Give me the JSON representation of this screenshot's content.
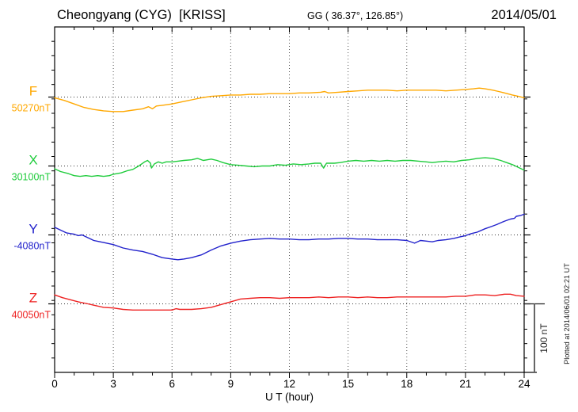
{
  "header": {
    "title": "Cheongyang (CYG)  [KRISS]",
    "coords": "GG ( 36.37°, 126.85°)",
    "date": "2014/05/01"
  },
  "side_note": "Plotted at 2014/06/01 02:21 UT",
  "chart_data": {
    "type": "line",
    "title": "Cheongyang (CYG) [KRISS] geomagnetic field components, 2014/05/01",
    "xlabel": "U T (hour)",
    "x_range_hours": [
      0,
      24
    ],
    "x_tick_hours": [
      0,
      3,
      6,
      9,
      12,
      15,
      18,
      21,
      24
    ],
    "x_tick_labels": [
      "0",
      "3",
      "6",
      "9",
      "12",
      "15",
      "18",
      "21",
      "24"
    ],
    "grid": "dotted vertical at 3h intervals, dotted horizontal at each component baseline",
    "scale_bar": {
      "label": "100 nT",
      "span_nT": 100
    },
    "series": [
      {
        "name": "F",
        "letter": "F",
        "baseline_label": "50270nT",
        "baseline_nT": 50270,
        "color": "#FFA800",
        "points": [
          [
            0,
            50269
          ],
          [
            0.5,
            50265
          ],
          [
            1,
            50260
          ],
          [
            1.5,
            50255
          ],
          [
            2,
            50252
          ],
          [
            2.5,
            50250
          ],
          [
            3,
            50249
          ],
          [
            3.5,
            50249
          ],
          [
            4,
            50251
          ],
          [
            4.5,
            50253
          ],
          [
            4.8,
            50256
          ],
          [
            5,
            50253
          ],
          [
            5.2,
            50257
          ],
          [
            5.5,
            50258
          ],
          [
            6,
            50260
          ],
          [
            6.5,
            50263
          ],
          [
            7,
            50266
          ],
          [
            7.5,
            50269
          ],
          [
            8,
            50271
          ],
          [
            8.5,
            50272
          ],
          [
            9,
            50273
          ],
          [
            9.5,
            50273
          ],
          [
            10,
            50274
          ],
          [
            10.5,
            50274
          ],
          [
            11,
            50275
          ],
          [
            12,
            50275
          ],
          [
            12.5,
            50276
          ],
          [
            13,
            50276
          ],
          [
            13.6,
            50277
          ],
          [
            13.8,
            50278
          ],
          [
            14,
            50276
          ],
          [
            14.5,
            50277
          ],
          [
            15,
            50278
          ],
          [
            15.5,
            50279
          ],
          [
            16,
            50280
          ],
          [
            16.5,
            50280
          ],
          [
            17,
            50280
          ],
          [
            17.5,
            50279
          ],
          [
            18,
            50280
          ],
          [
            18.5,
            50280
          ],
          [
            19,
            50280
          ],
          [
            19.5,
            50280
          ],
          [
            20,
            50279
          ],
          [
            20.5,
            50280
          ],
          [
            21,
            50281
          ],
          [
            21.4,
            50282
          ],
          [
            21.7,
            50283
          ],
          [
            22,
            50282
          ],
          [
            22.4,
            50280
          ],
          [
            22.7,
            50278
          ],
          [
            23,
            50276
          ],
          [
            23.4,
            50273
          ],
          [
            23.7,
            50271
          ],
          [
            24,
            50269
          ]
        ]
      },
      {
        "name": "X",
        "letter": "X",
        "baseline_label": "30100nT",
        "baseline_nT": 30100,
        "color": "#1FCC3C",
        "points": [
          [
            0,
            30096
          ],
          [
            0.3,
            30092
          ],
          [
            0.7,
            30089
          ],
          [
            1,
            30086
          ],
          [
            1.3,
            30085
          ],
          [
            1.6,
            30086
          ],
          [
            1.9,
            30085
          ],
          [
            2.2,
            30086
          ],
          [
            2.5,
            30085
          ],
          [
            2.8,
            30086
          ],
          [
            3,
            30088
          ],
          [
            3.4,
            30090
          ],
          [
            3.7,
            30093
          ],
          [
            4,
            30095
          ],
          [
            4.3,
            30100
          ],
          [
            4.6,
            30106
          ],
          [
            4.75,
            30108
          ],
          [
            4.9,
            30104
          ],
          [
            4.95,
            30097
          ],
          [
            5.1,
            30103
          ],
          [
            5.3,
            30106
          ],
          [
            5.5,
            30104
          ],
          [
            5.7,
            30106
          ],
          [
            6,
            30106
          ],
          [
            6.3,
            30107
          ],
          [
            6.6,
            30108
          ],
          [
            7,
            30109
          ],
          [
            7.3,
            30111
          ],
          [
            7.6,
            30108
          ],
          [
            7.8,
            30109
          ],
          [
            8,
            30110
          ],
          [
            8.3,
            30108
          ],
          [
            8.6,
            30105
          ],
          [
            9,
            30102
          ],
          [
            9.4,
            30101
          ],
          [
            9.8,
            30100
          ],
          [
            10.2,
            30099
          ],
          [
            10.6,
            30100
          ],
          [
            11,
            30100
          ],
          [
            11.4,
            30102
          ],
          [
            11.8,
            30101
          ],
          [
            12.2,
            30103
          ],
          [
            12.6,
            30102
          ],
          [
            13,
            30103
          ],
          [
            13.3,
            30104
          ],
          [
            13.6,
            30104
          ],
          [
            13.75,
            30097
          ],
          [
            13.9,
            30104
          ],
          [
            14.3,
            30104
          ],
          [
            14.6,
            30105
          ],
          [
            15,
            30107
          ],
          [
            15.4,
            30108
          ],
          [
            15.8,
            30107
          ],
          [
            16.2,
            30108
          ],
          [
            16.6,
            30107
          ],
          [
            17,
            30108
          ],
          [
            17.4,
            30107
          ],
          [
            17.8,
            30108
          ],
          [
            18.2,
            30108
          ],
          [
            18.6,
            30107
          ],
          [
            19,
            30106
          ],
          [
            19.3,
            30105
          ],
          [
            19.6,
            30106
          ],
          [
            20,
            30107
          ],
          [
            20.4,
            30106
          ],
          [
            20.8,
            30108
          ],
          [
            21.2,
            30109
          ],
          [
            21.6,
            30111
          ],
          [
            22,
            30112
          ],
          [
            22.4,
            30111
          ],
          [
            22.8,
            30108
          ],
          [
            23.1,
            30105
          ],
          [
            23.4,
            30102
          ],
          [
            23.7,
            30098
          ],
          [
            24,
            30094
          ]
        ]
      },
      {
        "name": "Y",
        "letter": "Y",
        "baseline_label": "-4080nT",
        "baseline_nT": -4080,
        "color": "#2222CC",
        "points": [
          [
            0,
            -4069
          ],
          [
            0.3,
            -4073
          ],
          [
            0.6,
            -4077
          ],
          [
            1,
            -4079
          ],
          [
            1.2,
            -4081
          ],
          [
            1.4,
            -4080
          ],
          [
            1.7,
            -4084
          ],
          [
            2,
            -4088
          ],
          [
            2.5,
            -4091
          ],
          [
            3,
            -4094
          ],
          [
            3.5,
            -4099
          ],
          [
            4,
            -4102
          ],
          [
            4.5,
            -4104
          ],
          [
            5,
            -4108
          ],
          [
            5.5,
            -4113
          ],
          [
            6,
            -4115
          ],
          [
            6.3,
            -4116
          ],
          [
            6.6,
            -4115
          ],
          [
            7,
            -4113
          ],
          [
            7.5,
            -4109
          ],
          [
            8,
            -4102
          ],
          [
            8.5,
            -4096
          ],
          [
            9,
            -4092
          ],
          [
            9.5,
            -4089
          ],
          [
            10,
            -4087
          ],
          [
            10.5,
            -4086
          ],
          [
            11,
            -4085
          ],
          [
            11.5,
            -4086
          ],
          [
            12,
            -4086
          ],
          [
            12.5,
            -4087
          ],
          [
            13,
            -4087
          ],
          [
            13.5,
            -4086
          ],
          [
            14,
            -4086
          ],
          [
            14.5,
            -4085
          ],
          [
            15,
            -4085
          ],
          [
            15.5,
            -4086
          ],
          [
            16,
            -4086
          ],
          [
            16.5,
            -4087
          ],
          [
            17,
            -4087
          ],
          [
            17.5,
            -4087
          ],
          [
            18,
            -4088
          ],
          [
            18.4,
            -4092
          ],
          [
            18.7,
            -4088
          ],
          [
            19,
            -4089
          ],
          [
            19.3,
            -4090
          ],
          [
            19.6,
            -4088
          ],
          [
            20,
            -4087
          ],
          [
            20.4,
            -4085
          ],
          [
            20.7,
            -4083
          ],
          [
            21,
            -4081
          ],
          [
            21.3,
            -4078
          ],
          [
            21.6,
            -4076
          ],
          [
            22,
            -4071
          ],
          [
            22.3,
            -4068
          ],
          [
            22.6,
            -4065
          ],
          [
            23,
            -4060
          ],
          [
            23.3,
            -4057
          ],
          [
            23.5,
            -4056
          ],
          [
            23.6,
            -4053
          ],
          [
            23.8,
            -4052
          ],
          [
            24,
            -4050
          ]
        ]
      },
      {
        "name": "Z",
        "letter": "Z",
        "baseline_label": "40050nT",
        "baseline_nT": 40050,
        "color": "#EE2222",
        "points": [
          [
            0,
            40063
          ],
          [
            0.4,
            40059
          ],
          [
            0.8,
            40056
          ],
          [
            1.2,
            40053
          ],
          [
            1.7,
            40050
          ],
          [
            2,
            40048
          ],
          [
            2.5,
            40045
          ],
          [
            3,
            40044
          ],
          [
            3.5,
            40042
          ],
          [
            4,
            40041
          ],
          [
            4.5,
            40041
          ],
          [
            5,
            40041
          ],
          [
            5.5,
            40041
          ],
          [
            6,
            40041
          ],
          [
            6.2,
            40043
          ],
          [
            6.4,
            40042
          ],
          [
            6.7,
            40042
          ],
          [
            7,
            40042
          ],
          [
            7.5,
            40043
          ],
          [
            8,
            40045
          ],
          [
            8.5,
            40049
          ],
          [
            9,
            40053
          ],
          [
            9.5,
            40057
          ],
          [
            10,
            40058
          ],
          [
            10.5,
            40059
          ],
          [
            11,
            40059
          ],
          [
            11.5,
            40058
          ],
          [
            12,
            40059
          ],
          [
            12.5,
            40059
          ],
          [
            13,
            40059
          ],
          [
            13.5,
            40060
          ],
          [
            14,
            40059
          ],
          [
            14.5,
            40060
          ],
          [
            15,
            40060
          ],
          [
            15.5,
            40059
          ],
          [
            16,
            40060
          ],
          [
            16.5,
            40059
          ],
          [
            17,
            40059
          ],
          [
            17.5,
            40060
          ],
          [
            18,
            40060
          ],
          [
            18.5,
            40060
          ],
          [
            19,
            40060
          ],
          [
            19.5,
            40060
          ],
          [
            20,
            40060
          ],
          [
            20.5,
            40061
          ],
          [
            21,
            40061
          ],
          [
            21.5,
            40063
          ],
          [
            22,
            40063
          ],
          [
            22.5,
            40062
          ],
          [
            23,
            40064
          ],
          [
            23.3,
            40064
          ],
          [
            23.6,
            40062
          ],
          [
            24,
            40061
          ]
        ]
      }
    ]
  }
}
